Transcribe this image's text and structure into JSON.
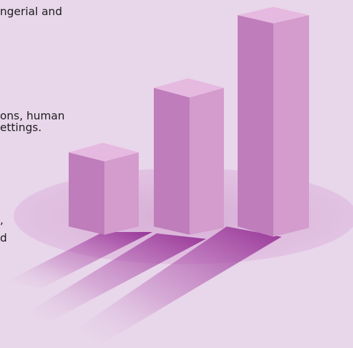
{
  "text_fragments": [
    "ngerial  and",
    "ons, human",
    "ettings.",
    ",",
    "d"
  ],
  "illustration": {
    "bar_count": 3,
    "colors": {
      "background": "#e8d6ea",
      "bar_front": "#bf7dbb",
      "bar_side": "#d39ccc",
      "bar_top": "#e6b9e0",
      "ellipse": "#dcb6da",
      "shadow": "#8a1d8a"
    }
  }
}
